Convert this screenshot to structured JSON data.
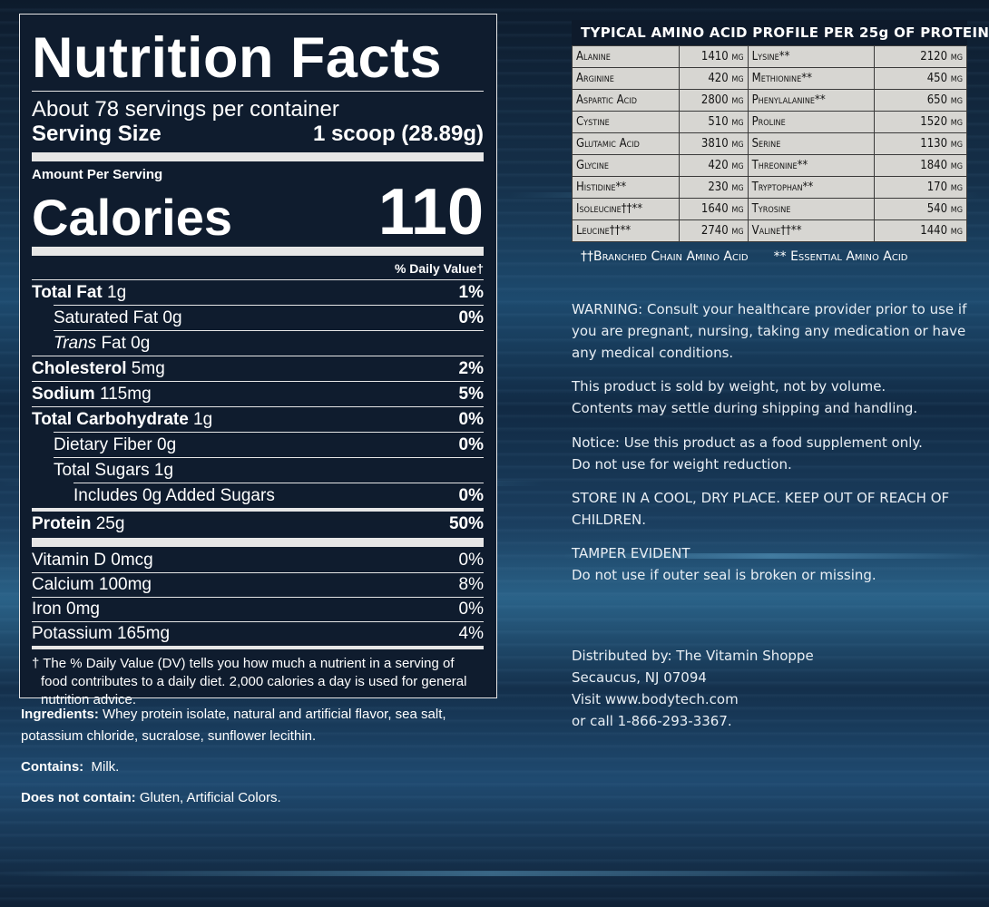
{
  "nutrition": {
    "title": "Nutrition Facts",
    "servings": "About 78 servings per container",
    "serving_size_label": "Serving Size",
    "serving_size_value": "1 scoop (28.89g)",
    "amount_per_serving": "Amount Per Serving",
    "calories_label": "Calories",
    "calories_value": "110",
    "dv_header": "% Daily Value†",
    "rows": [
      {
        "bold": "Total Fat",
        "rest": " 1g",
        "pct": "1%"
      },
      {
        "bold": "",
        "rest": "Saturated Fat 0g",
        "pct": "0%"
      },
      {
        "italic": "Trans",
        "rest": " Fat 0g",
        "pct": ""
      },
      {
        "bold": "Cholesterol",
        "rest": " 5mg",
        "pct": "2%"
      },
      {
        "bold": "Sodium",
        "rest": " 115mg",
        "pct": "5%"
      },
      {
        "bold": "Total Carbohydrate",
        "rest": " 1g",
        "pct": "0%"
      },
      {
        "bold": "",
        "rest": "Dietary Fiber 0g",
        "pct": "0%"
      },
      {
        "bold": "",
        "rest": "Total Sugars 1g",
        "pct": ""
      },
      {
        "bold": "",
        "rest": "Includes 0g Added Sugars",
        "pct": "0%"
      },
      {
        "bold": "Protein",
        "rest": " 25g",
        "pct": "50%"
      }
    ],
    "vitamins": [
      {
        "name": "Vitamin D 0mcg",
        "pct": "0%"
      },
      {
        "name": "Calcium 100mg",
        "pct": "8%"
      },
      {
        "name": "Iron 0mg",
        "pct": "0%"
      },
      {
        "name": "Potassium 165mg",
        "pct": "4%"
      }
    ],
    "footnote": "† The % Daily Value (DV) tells you how much a nutrient in a serving of food contributes to a daily diet. 2,000 calories a day is used for general nutrition advice."
  },
  "ingredients": {
    "ing_label": "Ingredients:",
    "ing_text": " Whey protein isolate, natural and artificial flavor, sea salt, potassium chloride, sucralose, sunflower lecithin.",
    "contains_label": "Contains:",
    "contains_text": "  Milk.",
    "not_contain_label": "Does not contain:",
    "not_contain_text": " Gluten, Artificial Colors."
  },
  "amino": {
    "title": "TYPICAL AMINO ACID PROFILE PER 25g OF PROTEIN",
    "rows": [
      [
        "Alanine",
        "1410 mg",
        "Lysine**",
        "2120 mg"
      ],
      [
        "Arginine",
        "420 mg",
        "Methionine**",
        "450 mg"
      ],
      [
        "Aspartic Acid",
        "2800 mg",
        "Phenylalanine**",
        "650 mg"
      ],
      [
        "Cystine",
        "510 mg",
        "Proline",
        "1520 mg"
      ],
      [
        "Glutamic Acid",
        "3810 mg",
        "Serine",
        "1130 mg"
      ],
      [
        "Glycine",
        "420 mg",
        "Threonine**",
        "1840 mg"
      ],
      [
        "Histidine**",
        "230 mg",
        "Tryptophan**",
        "170 mg"
      ],
      [
        "Isoleucine††**",
        "1640 mg",
        "Tyrosine",
        "540 mg"
      ],
      [
        "Leucine††**",
        "2740 mg",
        "Valine††**",
        "1440 mg"
      ]
    ],
    "legend_bcaa": "††Branched Chain Amino Acid",
    "legend_eaa": "** Essential Amino Acid"
  },
  "notices": {
    "warning": "WARNING: Consult your healthcare provider prior to use if you are pregnant, nursing, taking any medication or have any medical conditions.",
    "weight_1": "This product is sold by weight, not by volume.",
    "weight_2": "Contents may settle during shipping and handling.",
    "notice_1": "Notice: Use this product as a food supplement only.",
    "notice_2": "Do not use for weight reduction.",
    "store": "STORE IN A COOL, DRY PLACE. KEEP OUT OF REACH OF CHILDREN.",
    "tamper_1": "TAMPER EVIDENT",
    "tamper_2": "Do not use if outer seal is broken or missing."
  },
  "distributor": {
    "line1": "Distributed by: The Vitamin Shoppe",
    "line2": "Secaucus, NJ 07094",
    "line3": "Visit www.bodytech.com",
    "line4": "or call 1-866-293-3367."
  }
}
